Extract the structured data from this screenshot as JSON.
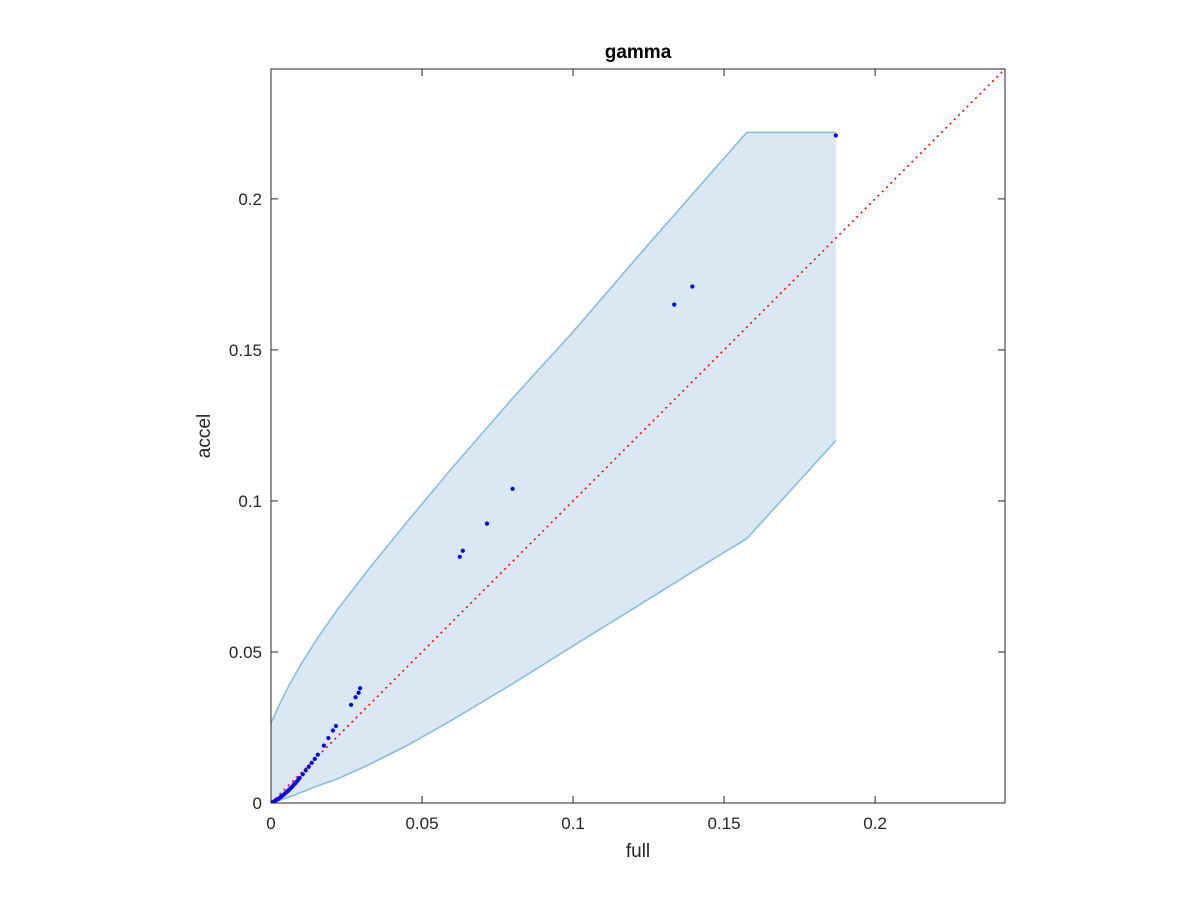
{
  "chart_data": {
    "type": "scatter",
    "title": "gamma",
    "xlabel": "full",
    "ylabel": "accel",
    "xlim": [
      0,
      0.243
    ],
    "ylim": [
      0,
      0.243
    ],
    "grid": false,
    "xticks": [
      {
        "value": 0,
        "label": "0"
      },
      {
        "value": 0.05,
        "label": "0.05"
      },
      {
        "value": 0.1,
        "label": "0.1"
      },
      {
        "value": 0.15,
        "label": "0.15"
      },
      {
        "value": 0.2,
        "label": "0.2"
      }
    ],
    "yticks": [
      {
        "value": 0,
        "label": "0"
      },
      {
        "value": 0.05,
        "label": "0.05"
      },
      {
        "value": 0.1,
        "label": "0.1"
      },
      {
        "value": 0.15,
        "label": "0.15"
      },
      {
        "value": 0.2,
        "label": "0.2"
      }
    ],
    "band": {
      "fill_color": "#dae8f4",
      "edge_color": "#89bde0",
      "x": [
        0,
        0.003,
        0.006,
        0.01,
        0.015,
        0.022,
        0.032,
        0.045,
        0.06,
        0.08,
        0.1,
        0.125,
        0.15,
        0.1575,
        0.187
      ],
      "upper": [
        0.0265,
        0.033,
        0.039,
        0.046,
        0.054,
        0.064,
        0.077,
        0.093,
        0.111,
        0.134,
        0.156,
        0.185,
        0.2135,
        0.222,
        0.222
      ],
      "lower": [
        0,
        0.001,
        0.002,
        0.0035,
        0.0055,
        0.008,
        0.0125,
        0.019,
        0.0275,
        0.0395,
        0.052,
        0.0675,
        0.083,
        0.0875,
        0.12
      ]
    },
    "series": [
      {
        "color": "#0000ff",
        "x": [
          0,
          0.0005,
          0.001,
          0.0015,
          0.002,
          0.0025,
          0.003,
          0.0035,
          0.004,
          0.0045,
          0.005,
          0.0055,
          0.006,
          0.0065,
          0.007,
          0.0075,
          0.008,
          0.0085,
          0.009,
          0.0095,
          0.0105,
          0.0115,
          0.0125,
          0.0135,
          0.0145,
          0.0155,
          0.0175,
          0.019,
          0.0205,
          0.0215,
          0.0265,
          0.028,
          0.029,
          0.0295,
          0.0625,
          0.0635,
          0.0715,
          0.08,
          0.1335,
          0.1395,
          0.187
        ],
        "y": [
          0,
          0.0002,
          0.0005,
          0.0008,
          0.0011,
          0.0014,
          0.0018,
          0.0022,
          0.0026,
          0.003,
          0.0035,
          0.0039,
          0.0044,
          0.0049,
          0.0054,
          0.006,
          0.0065,
          0.0071,
          0.0077,
          0.0083,
          0.0095,
          0.0108,
          0.012,
          0.0133,
          0.0146,
          0.016,
          0.019,
          0.0215,
          0.024,
          0.0255,
          0.0325,
          0.035,
          0.0365,
          0.038,
          0.0815,
          0.0835,
          0.0925,
          0.104,
          0.165,
          0.171,
          0.221
        ]
      }
    ],
    "reference_line": {
      "from": [
        0,
        0
      ],
      "to": [
        0.243,
        0.243
      ],
      "color": "#ff0000",
      "style": "dotted"
    }
  }
}
